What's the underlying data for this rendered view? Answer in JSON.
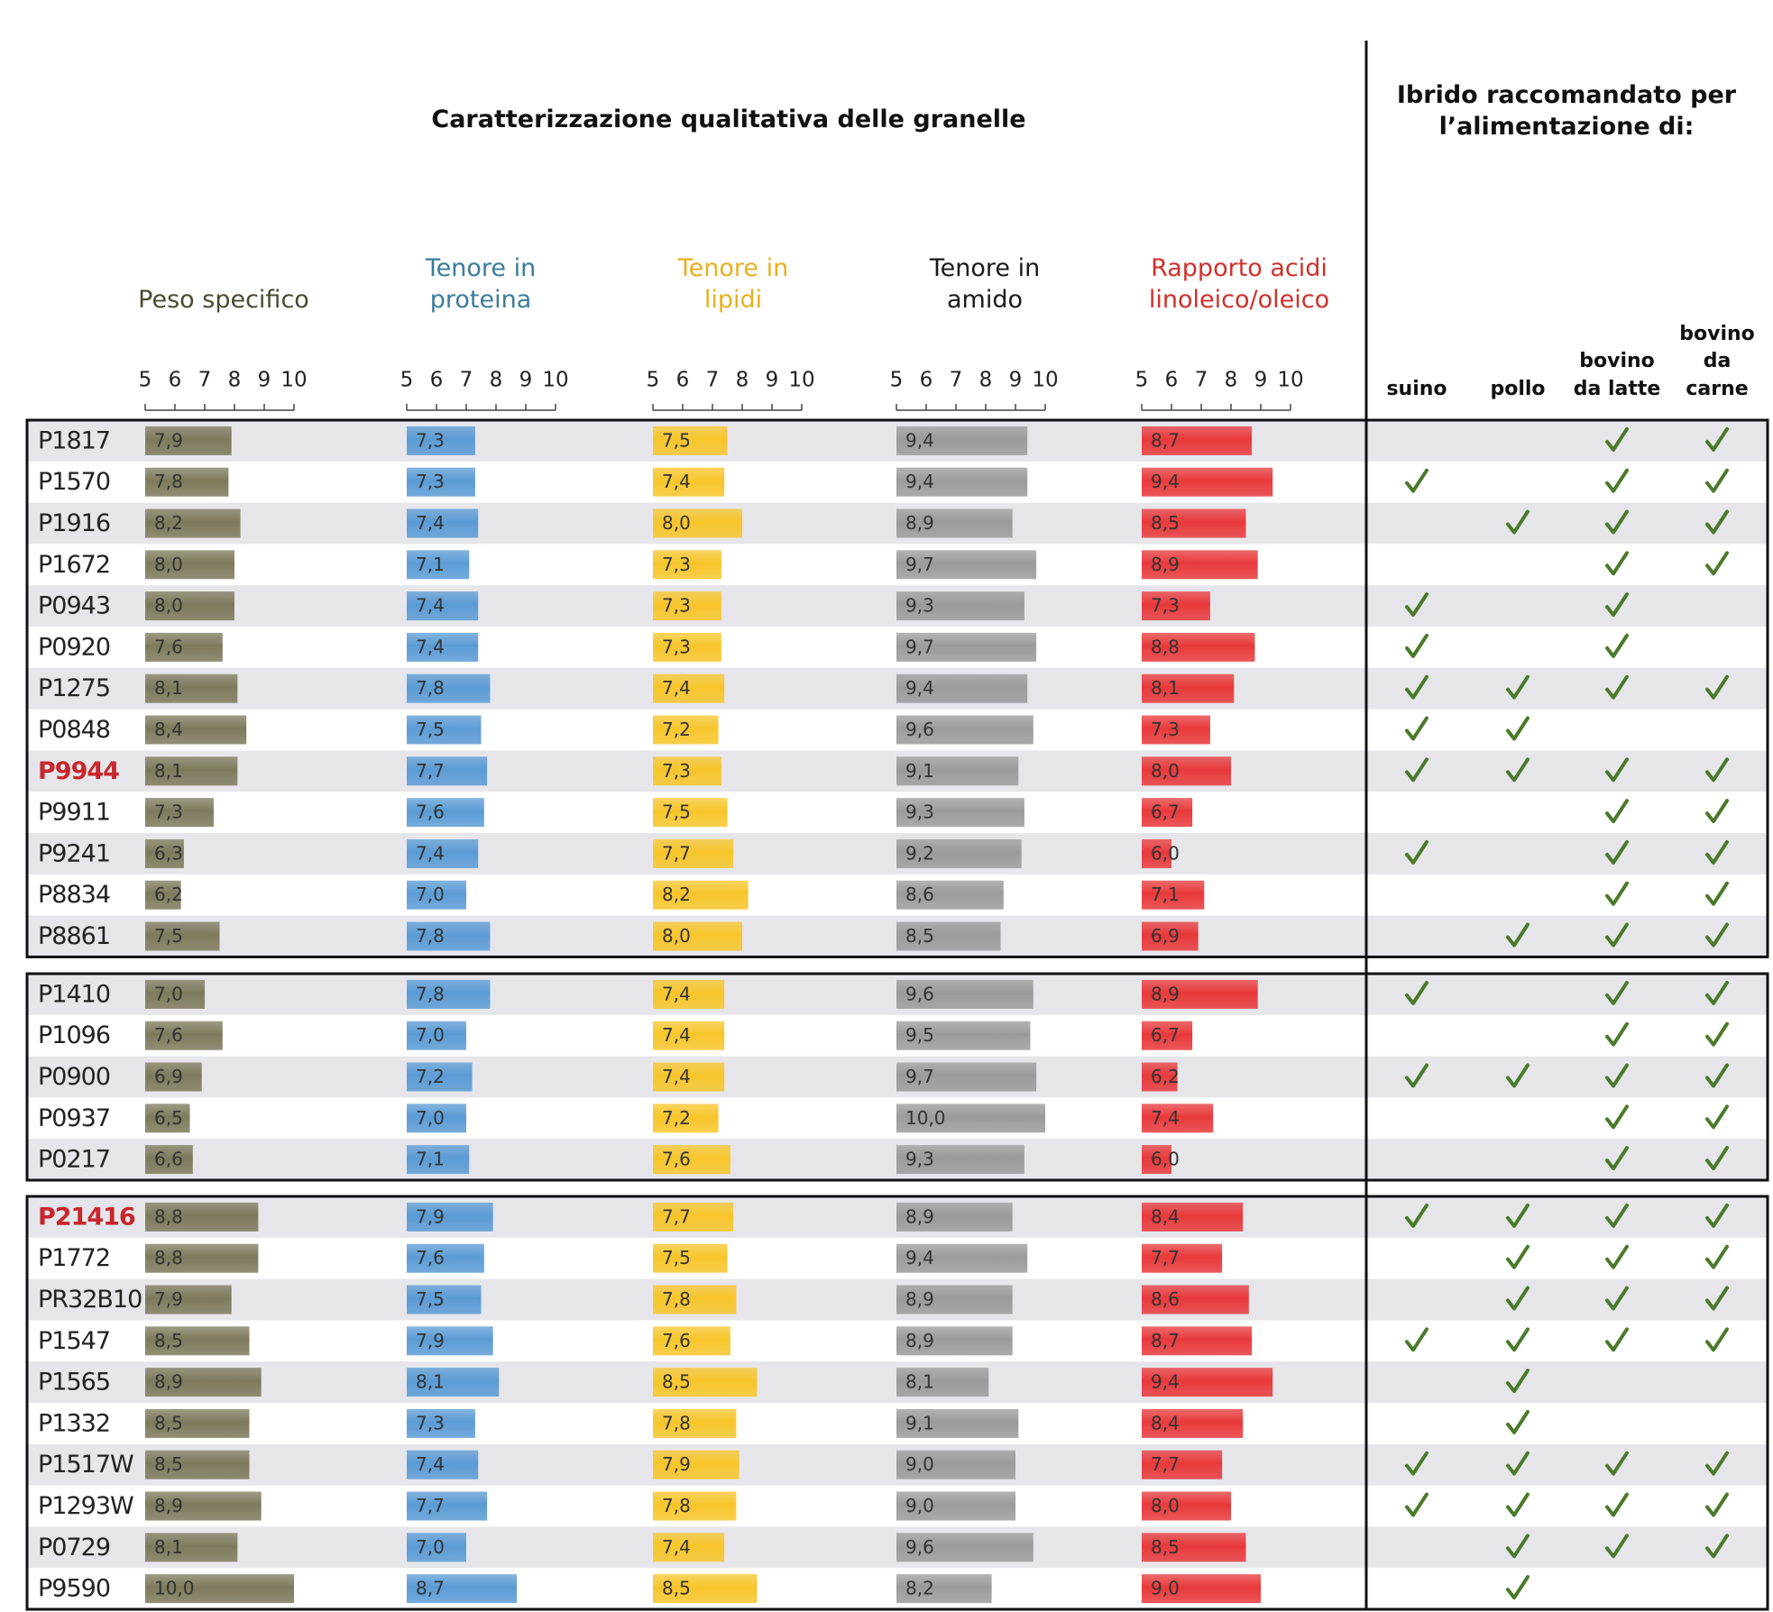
{
  "title": "Caratterizzazione qualitativa delle granelle",
  "recommend_title": "Ibrido raccomandato per l’alimentazione di:",
  "metrics": [
    {
      "name": "Peso specifico",
      "color": "#7d7a5c",
      "label_color": "#4b4a2e"
    },
    {
      "name": "Tenore in proteina",
      "color": "#5b9bd5",
      "label_color": "#3a7c9c"
    },
    {
      "name": "Tenore in lipidi",
      "color": "#f7c52b",
      "label_color": "#e8b020"
    },
    {
      "name": "Tenore in amido",
      "color": "#9b9b9b",
      "label_color": "#1a1a1a"
    },
    {
      "name": "Rapporto acidi linoleico/oleico",
      "color": "#e8393b",
      "label_color": "#d0302a"
    }
  ],
  "xlim": [
    5,
    10
  ],
  "xticks": [
    5,
    6,
    7,
    8,
    9,
    10
  ],
  "uses": [
    "suino",
    "pollo",
    "bovino da latte",
    "bovino da carne"
  ],
  "highlight_color": "#c8262c",
  "groups": [
    {
      "rows": [
        {
          "name": "P1817",
          "highlight": false,
          "values": [
            7.9,
            7.3,
            7.5,
            9.4,
            8.7
          ],
          "value_labels": [
            "7,9",
            "7,3",
            "7,5",
            "9,4",
            "8,7"
          ],
          "recommended": [
            false,
            false,
            true,
            true
          ]
        },
        {
          "name": "P1570",
          "highlight": false,
          "values": [
            7.8,
            7.3,
            7.4,
            9.4,
            9.4
          ],
          "value_labels": [
            "7,8",
            "7,3",
            "7,4",
            "9,4",
            "9,4"
          ],
          "recommended": [
            true,
            false,
            true,
            true
          ]
        },
        {
          "name": "P1916",
          "highlight": false,
          "values": [
            8.2,
            7.4,
            8.0,
            8.9,
            8.5
          ],
          "value_labels": [
            "8,2",
            "7,4",
            "8,0",
            "8,9",
            "8,5"
          ],
          "recommended": [
            false,
            true,
            true,
            true
          ]
        },
        {
          "name": "P1672",
          "highlight": false,
          "values": [
            8.0,
            7.1,
            7.3,
            9.7,
            8.9
          ],
          "value_labels": [
            "8,0",
            "7,1",
            "7,3",
            "9,7",
            "8,9"
          ],
          "recommended": [
            false,
            false,
            true,
            true
          ]
        },
        {
          "name": "P0943",
          "highlight": false,
          "values": [
            8.0,
            7.4,
            7.3,
            9.3,
            7.3
          ],
          "value_labels": [
            "8,0",
            "7,4",
            "7,3",
            "9,3",
            "7,3"
          ],
          "recommended": [
            true,
            false,
            true,
            false
          ]
        },
        {
          "name": "P0920",
          "highlight": false,
          "values": [
            7.6,
            7.4,
            7.3,
            9.7,
            8.8
          ],
          "value_labels": [
            "7,6",
            "7,4",
            "7,3",
            "9,7",
            "8,8"
          ],
          "recommended": [
            true,
            false,
            true,
            false
          ]
        },
        {
          "name": "P1275",
          "highlight": false,
          "values": [
            8.1,
            7.8,
            7.4,
            9.4,
            8.1
          ],
          "value_labels": [
            "8,1",
            "7,8",
            "7,4",
            "9,4",
            "8,1"
          ],
          "recommended": [
            true,
            true,
            true,
            true
          ]
        },
        {
          "name": "P0848",
          "highlight": false,
          "values": [
            8.4,
            7.5,
            7.2,
            9.6,
            7.3
          ],
          "value_labels": [
            "8,4",
            "7,5",
            "7,2",
            "9,6",
            "7,3"
          ],
          "recommended": [
            true,
            true,
            false,
            false
          ]
        },
        {
          "name": "P9944",
          "highlight": true,
          "values": [
            8.1,
            7.7,
            7.3,
            9.1,
            8.0
          ],
          "value_labels": [
            "8,1",
            "7,7",
            "7,3",
            "9,1",
            "8,0"
          ],
          "recommended": [
            true,
            true,
            true,
            true
          ]
        },
        {
          "name": "P9911",
          "highlight": false,
          "values": [
            7.3,
            7.6,
            7.5,
            9.3,
            6.7
          ],
          "value_labels": [
            "7,3",
            "7,6",
            "7,5",
            "9,3",
            "6,7"
          ],
          "recommended": [
            false,
            false,
            true,
            true
          ]
        },
        {
          "name": "P9241",
          "highlight": false,
          "values": [
            6.3,
            7.4,
            7.7,
            9.2,
            6.0
          ],
          "value_labels": [
            "6,3",
            "7,4",
            "7,7",
            "9,2",
            "6,0"
          ],
          "recommended": [
            true,
            false,
            true,
            true
          ]
        },
        {
          "name": "P8834",
          "highlight": false,
          "values": [
            6.2,
            7.0,
            8.2,
            8.6,
            7.1
          ],
          "value_labels": [
            "6,2",
            "7,0",
            "8,2",
            "8,6",
            "7,1"
          ],
          "recommended": [
            false,
            false,
            true,
            true
          ]
        },
        {
          "name": "P8861",
          "highlight": false,
          "values": [
            7.5,
            7.8,
            8.0,
            8.5,
            6.9
          ],
          "value_labels": [
            "7,5",
            "7,8",
            "8,0",
            "8,5",
            "6,9"
          ],
          "recommended": [
            false,
            true,
            true,
            true
          ]
        }
      ]
    },
    {
      "rows": [
        {
          "name": "P1410",
          "highlight": false,
          "values": [
            7.0,
            7.8,
            7.4,
            9.6,
            8.9
          ],
          "value_labels": [
            "7,0",
            "7,8",
            "7,4",
            "9,6",
            "8,9"
          ],
          "recommended": [
            true,
            false,
            true,
            true
          ]
        },
        {
          "name": "P1096",
          "highlight": false,
          "values": [
            7.6,
            7.0,
            7.4,
            9.5,
            6.7
          ],
          "value_labels": [
            "7,6",
            "7,0",
            "7,4",
            "9,5",
            "6,7"
          ],
          "recommended": [
            false,
            false,
            true,
            true
          ]
        },
        {
          "name": "P0900",
          "highlight": false,
          "values": [
            6.9,
            7.2,
            7.4,
            9.7,
            6.2
          ],
          "value_labels": [
            "6,9",
            "7,2",
            "7,4",
            "9,7",
            "6,2"
          ],
          "recommended": [
            true,
            true,
            true,
            true
          ]
        },
        {
          "name": "P0937",
          "highlight": false,
          "values": [
            6.5,
            7.0,
            7.2,
            10.0,
            7.4
          ],
          "value_labels": [
            "6,5",
            "7,0",
            "7,2",
            "10,0",
            "7,4"
          ],
          "recommended": [
            false,
            false,
            true,
            true
          ]
        },
        {
          "name": "P0217",
          "highlight": false,
          "values": [
            6.6,
            7.1,
            7.6,
            9.3,
            6.0
          ],
          "value_labels": [
            "6,6",
            "7,1",
            "7,6",
            "9,3",
            "6,0"
          ],
          "recommended": [
            false,
            false,
            true,
            true
          ]
        }
      ]
    },
    {
      "rows": [
        {
          "name": "P21416",
          "highlight": true,
          "values": [
            8.8,
            7.9,
            7.7,
            8.9,
            8.4
          ],
          "value_labels": [
            "8,8",
            "7,9",
            "7,7",
            "8,9",
            "8,4"
          ],
          "recommended": [
            true,
            true,
            true,
            true
          ]
        },
        {
          "name": "P1772",
          "highlight": false,
          "values": [
            8.8,
            7.6,
            7.5,
            9.4,
            7.7
          ],
          "value_labels": [
            "8,8",
            "7,6",
            "7,5",
            "9,4",
            "7,7"
          ],
          "recommended": [
            false,
            true,
            true,
            true
          ]
        },
        {
          "name": "PR32B10",
          "highlight": false,
          "values": [
            7.9,
            7.5,
            7.8,
            8.9,
            8.6
          ],
          "value_labels": [
            "7,9",
            "7,5",
            "7,8",
            "8,9",
            "8,6"
          ],
          "recommended": [
            false,
            true,
            true,
            true
          ]
        },
        {
          "name": "P1547",
          "highlight": false,
          "values": [
            8.5,
            7.9,
            7.6,
            8.9,
            8.7
          ],
          "value_labels": [
            "8,5",
            "7,9",
            "7,6",
            "8,9",
            "8,7"
          ],
          "recommended": [
            true,
            true,
            true,
            true
          ]
        },
        {
          "name": "P1565",
          "highlight": false,
          "values": [
            8.9,
            8.1,
            8.5,
            8.1,
            9.4
          ],
          "value_labels": [
            "8,9",
            "8,1",
            "8,5",
            "8,1",
            "9,4"
          ],
          "recommended": [
            false,
            true,
            false,
            false
          ]
        },
        {
          "name": "P1332",
          "highlight": false,
          "values": [
            8.5,
            7.3,
            7.8,
            9.1,
            8.4
          ],
          "value_labels": [
            "8,5",
            "7,3",
            "7,8",
            "9,1",
            "8,4"
          ],
          "recommended": [
            false,
            true,
            false,
            false
          ]
        },
        {
          "name": "P1517W",
          "highlight": false,
          "values": [
            8.5,
            7.4,
            7.9,
            9.0,
            7.7
          ],
          "value_labels": [
            "8,5",
            "7,4",
            "7,9",
            "9,0",
            "7,7"
          ],
          "recommended": [
            true,
            true,
            true,
            true
          ]
        },
        {
          "name": "P1293W",
          "highlight": false,
          "values": [
            8.9,
            7.7,
            7.8,
            9.0,
            8.0
          ],
          "value_labels": [
            "8,9",
            "7,7",
            "7,8",
            "9,0",
            "8,0"
          ],
          "recommended": [
            true,
            true,
            true,
            true
          ]
        },
        {
          "name": "P0729",
          "highlight": false,
          "values": [
            8.1,
            7.0,
            7.4,
            9.6,
            8.5
          ],
          "value_labels": [
            "8,1",
            "7,0",
            "7,4",
            "9,6",
            "8,5"
          ],
          "recommended": [
            false,
            true,
            true,
            true
          ]
        },
        {
          "name": "P9590",
          "highlight": false,
          "values": [
            10.0,
            8.7,
            8.5,
            8.2,
            9.0
          ],
          "value_labels": [
            "10,0",
            "8,7",
            "8,5",
            "8,2",
            "9,0"
          ],
          "recommended": [
            false,
            true,
            false,
            false
          ]
        }
      ]
    }
  ]
}
